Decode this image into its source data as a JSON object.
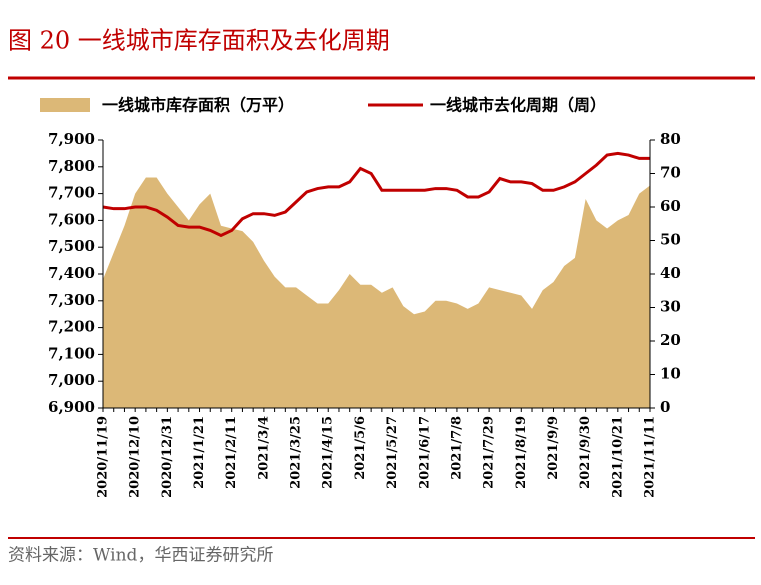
{
  "title": "图 20 一线城市库存面积及去化周期",
  "source": "资料来源：Wind，华西证券研究所",
  "chart_data": {
    "type": "area-line",
    "categories": [
      "2020/11/19",
      null,
      null,
      "2020/12/10",
      null,
      null,
      "2020/12/31",
      null,
      null,
      "2021/1/21",
      null,
      null,
      "2021/2/11",
      null,
      null,
      "2021/3/4",
      null,
      null,
      "2021/3/25",
      null,
      null,
      "2021/4/15",
      null,
      null,
      "2021/5/6",
      null,
      null,
      "2021/5/27",
      null,
      null,
      "2021/6/17",
      null,
      null,
      "2021/7/8",
      null,
      null,
      "2021/7/29",
      null,
      null,
      "2021/8/19",
      null,
      null,
      "2021/9/9",
      null,
      null,
      "2021/9/30",
      null,
      null,
      "2021/10/21",
      null,
      null,
      "2021/11/11"
    ],
    "series": [
      {
        "name": "一线城市库存面积（万平）",
        "type": "area",
        "color": "#dcb877",
        "values": [
          7380,
          7480,
          7580,
          7700,
          7760,
          7760,
          7700,
          7650,
          7600,
          7660,
          7700,
          7580,
          7570,
          7560,
          7520,
          7450,
          7390,
          7350,
          7350,
          7320,
          7290,
          7290,
          7340,
          7400,
          7360,
          7360,
          7330,
          7350,
          7280,
          7250,
          7260,
          7300,
          7300,
          7290,
          7270,
          7290,
          7350,
          7340,
          7330,
          7320,
          7270,
          7340,
          7370,
          7430,
          7460,
          7680,
          7600,
          7570,
          7600,
          7620,
          7700,
          7730
        ]
      },
      {
        "name": "一线城市去化周期（周）",
        "type": "line",
        "axis": "y2",
        "color": "#c00000",
        "values": [
          60,
          59.5,
          59.5,
          60,
          60,
          59,
          57,
          54.5,
          54,
          54,
          53,
          51.5,
          53,
          56.5,
          58,
          58,
          57.5,
          58.5,
          61.5,
          64.5,
          65.5,
          66,
          66,
          67.5,
          71.5,
          70,
          65,
          65,
          65,
          65,
          65,
          65.5,
          65.5,
          65,
          63,
          63,
          64.5,
          68.5,
          67.5,
          67.5,
          67,
          65,
          65,
          66,
          67.5,
          70,
          72.5,
          75.5,
          76,
          75.5,
          74.5,
          74.5
        ]
      }
    ],
    "ylim": [
      6900,
      7900
    ],
    "yticks": [
      {
        "value": 6900,
        "label": "6,900"
      },
      {
        "value": 7000,
        "label": "7,000"
      },
      {
        "value": 7100,
        "label": "7,100"
      },
      {
        "value": 7200,
        "label": "7,200"
      },
      {
        "value": 7300,
        "label": "7,300"
      },
      {
        "value": 7400,
        "label": "7,400"
      },
      {
        "value": 7500,
        "label": "7,500"
      },
      {
        "value": 7600,
        "label": "7,600"
      },
      {
        "value": 7700,
        "label": "7,700"
      },
      {
        "value": 7800,
        "label": "7,800"
      },
      {
        "value": 7900,
        "label": "7,900"
      }
    ],
    "y2lim": [
      0,
      80
    ],
    "y2ticks": [
      0,
      10,
      20,
      30,
      40,
      50,
      60,
      70,
      80
    ],
    "legend": "top"
  }
}
